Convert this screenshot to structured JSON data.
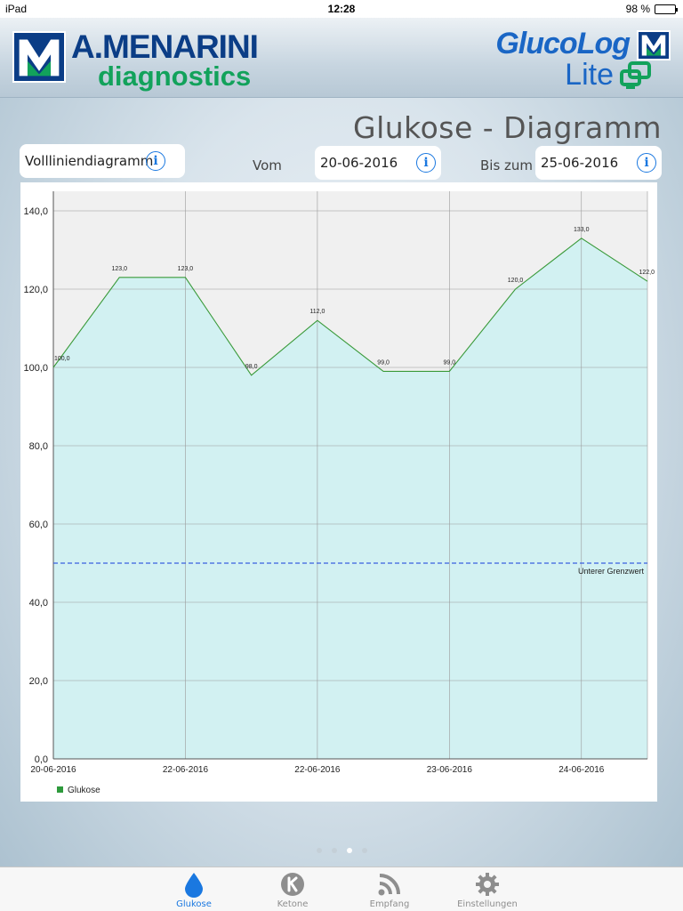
{
  "status_bar": {
    "device": "iPad",
    "time": "12:28",
    "battery": "98 %",
    "battery_level": 0.98
  },
  "header": {
    "brand_main": "A.MENARINI",
    "brand_sub": "diagnostics",
    "app_name": "GlucoLog",
    "app_sub": "Lite",
    "colors": {
      "brand_blue": "#0b3d86",
      "brand_green": "#12a25b",
      "app_blue": "#1a66c5"
    }
  },
  "page_title": "Glukose - Diagramm",
  "controls": {
    "chart_type": "Vollliniendiagramm",
    "from_label": "Vom",
    "from_date": "20-06-2016",
    "to_label": "Bis zum",
    "to_date": "25-06-2016"
  },
  "chart_data": {
    "type": "area",
    "x_tick_labels": [
      "20-06-2016",
      "22-06-2016",
      "22-06-2016",
      "23-06-2016",
      "24-06-2016"
    ],
    "series": [
      {
        "name": "Glukose",
        "values": [
          100,
          123,
          123,
          98,
          112,
          99,
          99,
          120,
          133,
          122
        ],
        "labels": [
          "100,0",
          "123,0",
          "123,0",
          "98,0",
          "112,0",
          "99,0",
          "99,0",
          "120,0",
          "133,0",
          "122,0"
        ],
        "color": "#3a9a3a",
        "fill": "#d2f1f2"
      }
    ],
    "ylim": [
      0,
      145
    ],
    "y_ticks": [
      0,
      20,
      40,
      60,
      80,
      100,
      120,
      140
    ],
    "y_tick_labels": [
      "0,0",
      "20,0",
      "40,0",
      "60,0",
      "80,0",
      "100,0",
      "120,0",
      "140,0"
    ],
    "threshold": {
      "value": 50,
      "label": "Unterer Grenzwert",
      "color": "#3a5fe0"
    },
    "grid": true,
    "legend": {
      "position": "bottom-left",
      "label": "Glukose",
      "color": "#2e9a3c"
    }
  },
  "page_indicator": {
    "count": 4,
    "active": 2
  },
  "tabs": [
    {
      "label": "Glukose",
      "icon": "drop-icon",
      "active": true
    },
    {
      "label": "Ketone",
      "icon": "ketone-k-icon",
      "active": false
    },
    {
      "label": "Empfang",
      "icon": "rss-icon",
      "active": false
    },
    {
      "label": "Einstellungen",
      "icon": "gear-icon",
      "active": false
    }
  ]
}
